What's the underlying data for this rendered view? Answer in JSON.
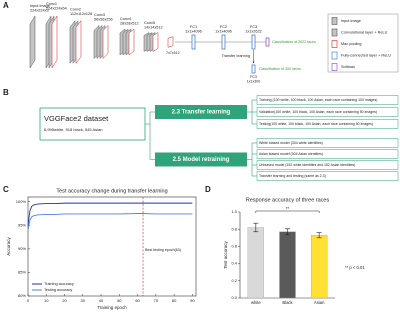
{
  "panel_a": {
    "label": "A",
    "layers": [
      {
        "name": "Input image",
        "size": "224x224x3"
      },
      {
        "name": "Conv1",
        "size": "224x224x64"
      },
      {
        "name": "Conv2",
        "size": "112x112x128"
      },
      {
        "name": "Conv3",
        "size": "56x56x256"
      },
      {
        "name": "Conv4",
        "size": "28x28x512"
      },
      {
        "name": "Conv5",
        "size": "14x14x512"
      }
    ],
    "pool_size": "7x7x512",
    "fc": [
      {
        "name": "FC1",
        "size": "1x1x4096"
      },
      {
        "name": "FC2",
        "size": "1x1x4096"
      },
      {
        "name": "FC3",
        "size": "1x1x2622"
      }
    ],
    "output": "Classification of 2622 faces",
    "transfer": "Transfer learning",
    "new_fc": {
      "name": "FC3",
      "size": "1x1x300"
    },
    "new_output": "Classification of 300 faces",
    "legend": [
      "Input image",
      "Convolutional layer + ReLU",
      "Max pooling",
      "Fully-connected layer + ReLU",
      "Softmax"
    ]
  },
  "panel_b": {
    "label": "B",
    "dataset": {
      "title": "VGGFace2 dataset",
      "subtitle": "6,995white, 518 black, 545 Asian"
    },
    "groups": [
      {
        "title": "2.3 Transfer learning",
        "items": [
          "Training (100 white, 100 black, 100 Asian, each race containing 100 images)",
          "Validation(100 white, 100 black, 100 Asian, each race containing 50 images)",
          "Testing(100 white, 100 black, 100 Asian, each race containing 50 images)"
        ]
      },
      {
        "title": "2.5 Model retraining",
        "items": [
          "White biased model (304 white identities)",
          "Asian biased model (304 Asian identities)",
          "Unbiased model (152 white identities and 152 Asian identities)",
          "Transfer learning and testing (same as 2.3)"
        ]
      }
    ]
  },
  "chart_data": [
    {
      "panel": "C",
      "type": "line",
      "title": "Test accuracy change during transfer learning",
      "x_label": "Training epoch",
      "y_label": "Accuracy",
      "x": [
        0,
        1,
        2,
        3,
        4,
        5,
        10,
        15,
        20,
        30,
        40,
        50,
        60,
        63,
        70,
        80,
        90
      ],
      "series": [
        {
          "name": "Training accuracy",
          "color": "#1f2fb0",
          "values": [
            95,
            98,
            99,
            99.3,
            99.4,
            99.5,
            99.6,
            99.6,
            99.7,
            99.7,
            99.7,
            99.7,
            99.7,
            99.7,
            99.7,
            99.7,
            99.7
          ]
        },
        {
          "name": "Testing accuracy",
          "color": "#4a86e0",
          "values": [
            94,
            96,
            96.8,
            97,
            97.1,
            97.2,
            97.3,
            97.3,
            97.4,
            97.4,
            97.4,
            97.4,
            97.5,
            97.5,
            97.4,
            97.4,
            97.4
          ]
        }
      ],
      "xlim": [
        0,
        92
      ],
      "ylim": [
        80,
        101
      ],
      "xticks": [
        0,
        10,
        20,
        30,
        40,
        50,
        60,
        70,
        80,
        90
      ],
      "yticks": [
        {
          "value": 80,
          "label": "80%"
        },
        {
          "value": 85,
          "label": "85%"
        },
        {
          "value": 90,
          "label": "90%"
        },
        {
          "value": 95,
          "label": "95%"
        },
        {
          "value": 100,
          "label": "100%"
        }
      ],
      "vline": 63,
      "vline_label": "Best testing epoch(63)",
      "vline_color": "#d42020",
      "legend": "lower left",
      "grid": false
    },
    {
      "panel": "D",
      "type": "bar",
      "title": "Response accuracy of three races",
      "y_label": "Test accuracy",
      "categories": [
        "white",
        "Black",
        "Asian"
      ],
      "values": [
        0.82,
        0.77,
        0.73
      ],
      "errors": [
        0.05,
        0.035,
        0.03
      ],
      "colors": [
        "#d9d9d9",
        "#5a5a5a",
        "#ffe033"
      ],
      "ylim": [
        0,
        1
      ],
      "yticks": [
        {
          "value": 0,
          "label": "0.0"
        },
        0.2,
        0.4,
        0.6,
        0.8,
        {
          "value": 1,
          "label": "1.0"
        }
      ],
      "significance_label": "**",
      "note": "** p < 0.01",
      "grid": false
    }
  ]
}
